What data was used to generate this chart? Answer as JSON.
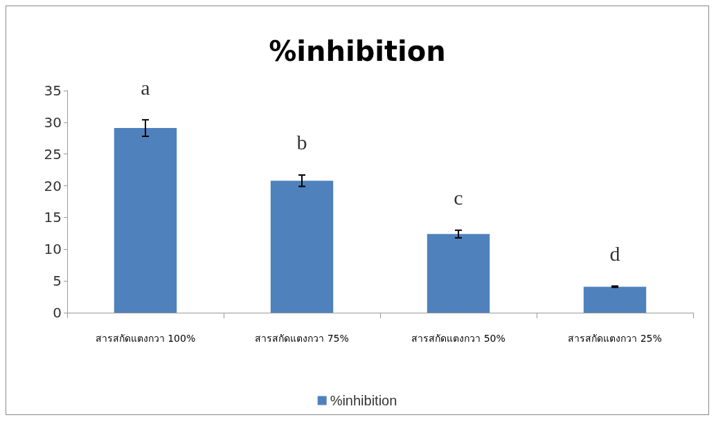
{
  "chart_data": {
    "type": "bar",
    "title": "%inhibition",
    "categories": [
      "สารสกัดแตงกวา 100%",
      "สารสกัดแตงกวา 75%",
      "สารสกัดแตงกวา 50%",
      "สารสกัดแตงกวา 25%"
    ],
    "series": [
      {
        "name": "%inhibition",
        "color": "#4f81bd",
        "values": [
          29.1,
          20.8,
          12.4,
          4.1
        ],
        "errors": [
          1.3,
          0.9,
          0.6,
          0.1
        ]
      }
    ],
    "ylim": [
      0,
      35
    ],
    "yticks": [
      0,
      5,
      10,
      15,
      20,
      25,
      30,
      35
    ],
    "grid": false,
    "legend": "bottom",
    "annotations": [
      "a",
      "b",
      "c",
      "d"
    ]
  }
}
